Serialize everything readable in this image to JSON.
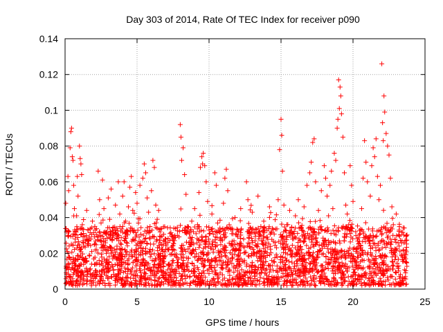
{
  "chart_data": {
    "type": "scatter",
    "title": "Day 303 of 2014, Rate Of TEC Index for receiver p090",
    "xlabel": "GPS time / hours",
    "ylabel": "ROTI / TECUs",
    "xlim": [
      0,
      25
    ],
    "ylim": [
      0,
      0.14
    ],
    "x_ticks": [
      0,
      5,
      10,
      15,
      20,
      25
    ],
    "x_tick_labels": [
      "0",
      "5",
      "10",
      "15",
      "20",
      "25"
    ],
    "y_ticks": [
      0,
      0.02,
      0.04,
      0.06,
      0.08,
      0.1,
      0.12,
      0.14
    ],
    "y_tick_labels": [
      "0",
      "0.02",
      "0.04",
      "0.06",
      "0.08",
      "0.1",
      "0.12",
      "0.14"
    ],
    "grid": true,
    "marker": "+",
    "series": [
      {
        "name": "ROTI",
        "color": "#ff0000",
        "points": [
          [
            0.05,
            0.048
          ],
          [
            0.1,
            0.032
          ],
          [
            0.15,
            0.021
          ],
          [
            0.2,
            0.063
          ],
          [
            0.25,
            0.055
          ],
          [
            0.3,
            0.012
          ],
          [
            0.35,
            0.079
          ],
          [
            0.4,
            0.088
          ],
          [
            0.45,
            0.09
          ],
          [
            0.5,
            0.074
          ],
          [
            0.55,
            0.072
          ],
          [
            0.6,
            0.058
          ],
          [
            0.65,
            0.045
          ],
          [
            0.7,
            0.028
          ],
          [
            0.75,
            0.017
          ],
          [
            0.8,
            0.041
          ],
          [
            0.85,
            0.063
          ],
          [
            0.9,
            0.052
          ],
          [
            1.0,
            0.08
          ],
          [
            1.05,
            0.073
          ],
          [
            1.1,
            0.07
          ],
          [
            1.15,
            0.064
          ],
          [
            1.2,
            0.036
          ],
          [
            1.3,
            0.024
          ],
          [
            1.4,
            0.015
          ],
          [
            1.5,
            0.044
          ],
          [
            1.6,
            0.033
          ],
          [
            1.7,
            0.019
          ],
          [
            1.8,
            0.028
          ],
          [
            1.9,
            0.038
          ],
          [
            2.0,
            0.009
          ],
          [
            2.1,
            0.014
          ],
          [
            2.2,
            0.022
          ],
          [
            2.3,
            0.066
          ],
          [
            2.4,
            0.05
          ],
          [
            2.5,
            0.037
          ],
          [
            2.6,
            0.061
          ],
          [
            2.7,
            0.045
          ],
          [
            2.8,
            0.027
          ],
          [
            2.9,
            0.016
          ],
          [
            3.0,
            0.051
          ],
          [
            3.1,
            0.039
          ],
          [
            3.2,
            0.056
          ],
          [
            3.3,
            0.029
          ],
          [
            3.4,
            0.018
          ],
          [
            3.5,
            0.047
          ],
          [
            3.6,
            0.034
          ],
          [
            3.7,
            0.06
          ],
          [
            3.8,
            0.042
          ],
          [
            3.9,
            0.025
          ],
          [
            4.0,
            0.052
          ],
          [
            4.1,
            0.06
          ],
          [
            4.2,
            0.038
          ],
          [
            4.3,
            0.021
          ],
          [
            4.4,
            0.046
          ],
          [
            4.5,
            0.057
          ],
          [
            4.6,
            0.063
          ],
          [
            4.7,
            0.044
          ],
          [
            4.8,
            0.033
          ],
          [
            4.9,
            0.054
          ],
          [
            5.0,
            0.048
          ],
          [
            5.1,
            0.037
          ],
          [
            5.2,
            0.058
          ],
          [
            5.3,
            0.026
          ],
          [
            5.4,
            0.062
          ],
          [
            5.5,
            0.07
          ],
          [
            5.6,
            0.065
          ],
          [
            5.7,
            0.051
          ],
          [
            5.8,
            0.043
          ],
          [
            5.9,
            0.035
          ],
          [
            6.0,
            0.055
          ],
          [
            6.1,
            0.072
          ],
          [
            6.2,
            0.068
          ],
          [
            6.3,
            0.047
          ],
          [
            6.4,
            0.039
          ],
          [
            6.5,
            0.044
          ],
          [
            6.6,
            0.032
          ],
          [
            6.7,
            0.025
          ],
          [
            6.8,
            0.015
          ],
          [
            6.9,
            0.018
          ],
          [
            7.0,
            0.028
          ],
          [
            7.2,
            0.022
          ],
          [
            7.4,
            0.013
          ],
          [
            7.6,
            0.019
          ],
          [
            7.8,
            0.03
          ],
          [
            8.0,
            0.092
          ],
          [
            8.05,
            0.085
          ],
          [
            8.1,
            0.072
          ],
          [
            8.2,
            0.079
          ],
          [
            8.3,
            0.064
          ],
          [
            8.4,
            0.053
          ],
          [
            8.5,
            0.035
          ],
          [
            8.6,
            0.026
          ],
          [
            8.7,
            0.029
          ],
          [
            8.8,
            0.038
          ],
          [
            8.9,
            0.022
          ],
          [
            9.0,
            0.045
          ],
          [
            9.1,
            0.031
          ],
          [
            9.2,
            0.036
          ],
          [
            9.3,
            0.054
          ],
          [
            9.4,
            0.068
          ],
          [
            9.5,
            0.074
          ],
          [
            9.55,
            0.07
          ],
          [
            9.6,
            0.076
          ],
          [
            9.7,
            0.069
          ],
          [
            9.8,
            0.06
          ],
          [
            9.9,
            0.049
          ],
          [
            10.0,
            0.033
          ],
          [
            10.2,
            0.042
          ],
          [
            10.4,
            0.065
          ],
          [
            10.5,
            0.058
          ],
          [
            10.6,
            0.037
          ],
          [
            10.8,
            0.029
          ],
          [
            11.0,
            0.048
          ],
          [
            11.1,
            0.062
          ],
          [
            11.2,
            0.067
          ],
          [
            11.3,
            0.055
          ],
          [
            11.4,
            0.036
          ],
          [
            11.6,
            0.025
          ],
          [
            11.8,
            0.04
          ],
          [
            12.0,
            0.033
          ],
          [
            12.2,
            0.045
          ],
          [
            12.4,
            0.028
          ],
          [
            12.6,
            0.06
          ],
          [
            12.7,
            0.05
          ],
          [
            12.8,
            0.031
          ],
          [
            13.0,
            0.043
          ],
          [
            13.2,
            0.027
          ],
          [
            13.4,
            0.052
          ],
          [
            13.6,
            0.035
          ],
          [
            13.8,
            0.038
          ],
          [
            14.0,
            0.029
          ],
          [
            14.2,
            0.046
          ],
          [
            14.4,
            0.034
          ],
          [
            14.6,
            0.026
          ],
          [
            14.8,
            0.05
          ],
          [
            14.9,
            0.078
          ],
          [
            15.0,
            0.095
          ],
          [
            15.05,
            0.086
          ],
          [
            15.1,
            0.066
          ],
          [
            15.2,
            0.047
          ],
          [
            15.4,
            0.036
          ],
          [
            15.6,
            0.044
          ],
          [
            15.8,
            0.028
          ],
          [
            16.0,
            0.041
          ],
          [
            16.2,
            0.05
          ],
          [
            16.4,
            0.034
          ],
          [
            16.6,
            0.046
          ],
          [
            16.8,
            0.058
          ],
          [
            17.0,
            0.065
          ],
          [
            17.1,
            0.071
          ],
          [
            17.2,
            0.082
          ],
          [
            17.3,
            0.084
          ],
          [
            17.4,
            0.06
          ],
          [
            17.6,
            0.044
          ],
          [
            17.8,
            0.055
          ],
          [
            18.0,
            0.069
          ],
          [
            18.1,
            0.062
          ],
          [
            18.2,
            0.052
          ],
          [
            18.3,
            0.041
          ],
          [
            18.4,
            0.058
          ],
          [
            18.5,
            0.066
          ],
          [
            18.6,
            0.045
          ],
          [
            18.7,
            0.076
          ],
          [
            18.8,
            0.072
          ],
          [
            18.9,
            0.09
          ],
          [
            18.95,
            0.095
          ],
          [
            19.0,
            0.117
          ],
          [
            19.05,
            0.101
          ],
          [
            19.1,
            0.113
          ],
          [
            19.15,
            0.108
          ],
          [
            19.2,
            0.098
          ],
          [
            19.3,
            0.085
          ],
          [
            19.4,
            0.065
          ],
          [
            19.5,
            0.047
          ],
          [
            19.6,
            0.042
          ],
          [
            19.7,
            0.036
          ],
          [
            19.8,
            0.069
          ],
          [
            19.9,
            0.058
          ],
          [
            20.0,
            0.049
          ],
          [
            20.2,
            0.014
          ],
          [
            20.4,
            0.024
          ],
          [
            20.5,
            0.031
          ],
          [
            20.6,
            0.045
          ],
          [
            20.7,
            0.062
          ],
          [
            20.8,
            0.083
          ],
          [
            20.9,
            0.071
          ],
          [
            21.0,
            0.06
          ],
          [
            21.2,
            0.052
          ],
          [
            21.3,
            0.069
          ],
          [
            21.4,
            0.079
          ],
          [
            21.5,
            0.074
          ],
          [
            21.6,
            0.084
          ],
          [
            21.7,
            0.063
          ],
          [
            21.8,
            0.05
          ],
          [
            21.9,
            0.058
          ],
          [
            22.0,
            0.126
          ],
          [
            22.05,
            0.093
          ],
          [
            22.1,
            0.083
          ],
          [
            22.15,
            0.108
          ],
          [
            22.2,
            0.099
          ],
          [
            22.3,
            0.087
          ],
          [
            22.4,
            0.08
          ],
          [
            22.5,
            0.075
          ],
          [
            22.6,
            0.062
          ],
          [
            22.7,
            0.046
          ],
          [
            22.8,
            0.036
          ],
          [
            23.0,
            0.042
          ],
          [
            23.2,
            0.033
          ],
          [
            23.4,
            0.027
          ],
          [
            23.5,
            0.022
          ],
          [
            23.6,
            0.018
          ],
          [
            23.7,
            0.03
          ]
        ]
      }
    ],
    "dense_band": {
      "description": "dense cluster of low ROTI values across the full day",
      "x_range": [
        0.0,
        23.75
      ],
      "y_range": [
        0.002,
        0.035
      ]
    }
  }
}
